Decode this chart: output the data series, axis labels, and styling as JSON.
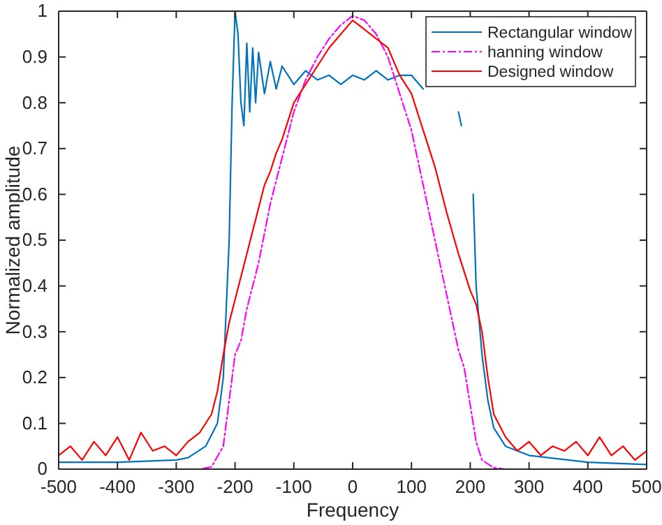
{
  "chart_data": {
    "type": "line",
    "xlabel": "Frequency",
    "ylabel": "Normalized amplitude",
    "xlim": [
      -500,
      500
    ],
    "ylim": [
      0,
      1
    ],
    "xticks": [
      -500,
      -400,
      -300,
      -200,
      -100,
      0,
      100,
      200,
      300,
      400,
      500
    ],
    "yticks": [
      0,
      0.1,
      0.2,
      0.3,
      0.4,
      0.5,
      0.6,
      0.7,
      0.8,
      0.9,
      1
    ],
    "grid": false,
    "legend": "top right",
    "x": [
      -500,
      -400,
      -300,
      -280,
      -250,
      -230,
      -220,
      -210,
      -205,
      -200,
      -195,
      -190,
      -185,
      -180,
      -175,
      -170,
      -165,
      -160,
      -150,
      -140,
      -130,
      -120,
      -100,
      -80,
      -60,
      -40,
      -20,
      0,
      20,
      40,
      60,
      80,
      100,
      120,
      140,
      160,
      180,
      185,
      190,
      195,
      200,
      205,
      210,
      220,
      230,
      240,
      260,
      300,
      400,
      500
    ],
    "series": [
      {
        "name": "Rectangular window",
        "color": "#0072bd",
        "line_style": "solid",
        "values": [
          0.015,
          0.015,
          0.02,
          0.025,
          0.05,
          0.1,
          0.2,
          0.5,
          0.8,
          1.0,
          0.95,
          0.8,
          0.75,
          0.93,
          0.78,
          0.92,
          0.8,
          0.91,
          0.82,
          0.89,
          0.83,
          0.88,
          0.84,
          0.87,
          0.85,
          0.86,
          0.84,
          0.86,
          0.85,
          0.87,
          0.85,
          0.86,
          0.86,
          0.83,
          null,
          null,
          0.78,
          0.75,
          null,
          null,
          null,
          0.6,
          0.4,
          0.25,
          0.15,
          0.09,
          0.05,
          0.03,
          0.015,
          0.01
        ]
      },
      {
        "name": "hanning window",
        "color": "#ff00ff",
        "line_style": "dashed",
        "x": [
          -500,
          -260,
          -240,
          -220,
          -210,
          -200,
          -190,
          -180,
          -160,
          -140,
          -120,
          -100,
          -80,
          -60,
          -40,
          -20,
          0,
          20,
          40,
          60,
          80,
          100,
          120,
          140,
          160,
          180,
          190,
          200,
          210,
          220,
          240,
          260,
          500
        ],
        "values": [
          0,
          0,
          0.005,
          0.05,
          0.15,
          0.25,
          0.28,
          0.35,
          0.45,
          0.58,
          0.68,
          0.78,
          0.85,
          0.9,
          0.94,
          0.97,
          0.99,
          0.98,
          0.95,
          0.9,
          0.82,
          0.74,
          0.62,
          0.5,
          0.38,
          0.26,
          0.22,
          0.14,
          0.06,
          0.02,
          0.003,
          0,
          0
        ]
      },
      {
        "name": "Designed window",
        "color": "#ff0000",
        "line_style": "solid",
        "x": [
          -500,
          -480,
          -460,
          -440,
          -420,
          -400,
          -380,
          -360,
          -340,
          -320,
          -300,
          -280,
          -260,
          -240,
          -230,
          -220,
          -210,
          -200,
          -190,
          -180,
          -170,
          -160,
          -150,
          -140,
          -130,
          -120,
          -110,
          -100,
          -80,
          -60,
          -40,
          -20,
          0,
          20,
          40,
          60,
          80,
          100,
          120,
          140,
          160,
          180,
          200,
          210,
          220,
          230,
          240,
          260,
          280,
          300,
          320,
          340,
          360,
          380,
          400,
          420,
          440,
          460,
          480,
          500
        ],
        "values": [
          0.03,
          0.05,
          0.02,
          0.06,
          0.03,
          0.07,
          0.02,
          0.08,
          0.04,
          0.05,
          0.03,
          0.06,
          0.08,
          0.12,
          0.17,
          0.25,
          0.32,
          0.37,
          0.42,
          0.47,
          0.52,
          0.57,
          0.62,
          0.65,
          0.69,
          0.72,
          0.76,
          0.8,
          0.84,
          0.88,
          0.92,
          0.95,
          0.98,
          0.96,
          0.94,
          0.92,
          0.86,
          0.82,
          0.74,
          0.66,
          0.56,
          0.47,
          0.39,
          0.36,
          0.3,
          0.2,
          0.12,
          0.07,
          0.04,
          0.06,
          0.03,
          0.05,
          0.04,
          0.06,
          0.03,
          0.07,
          0.03,
          0.05,
          0.02,
          0.04
        ]
      }
    ]
  }
}
